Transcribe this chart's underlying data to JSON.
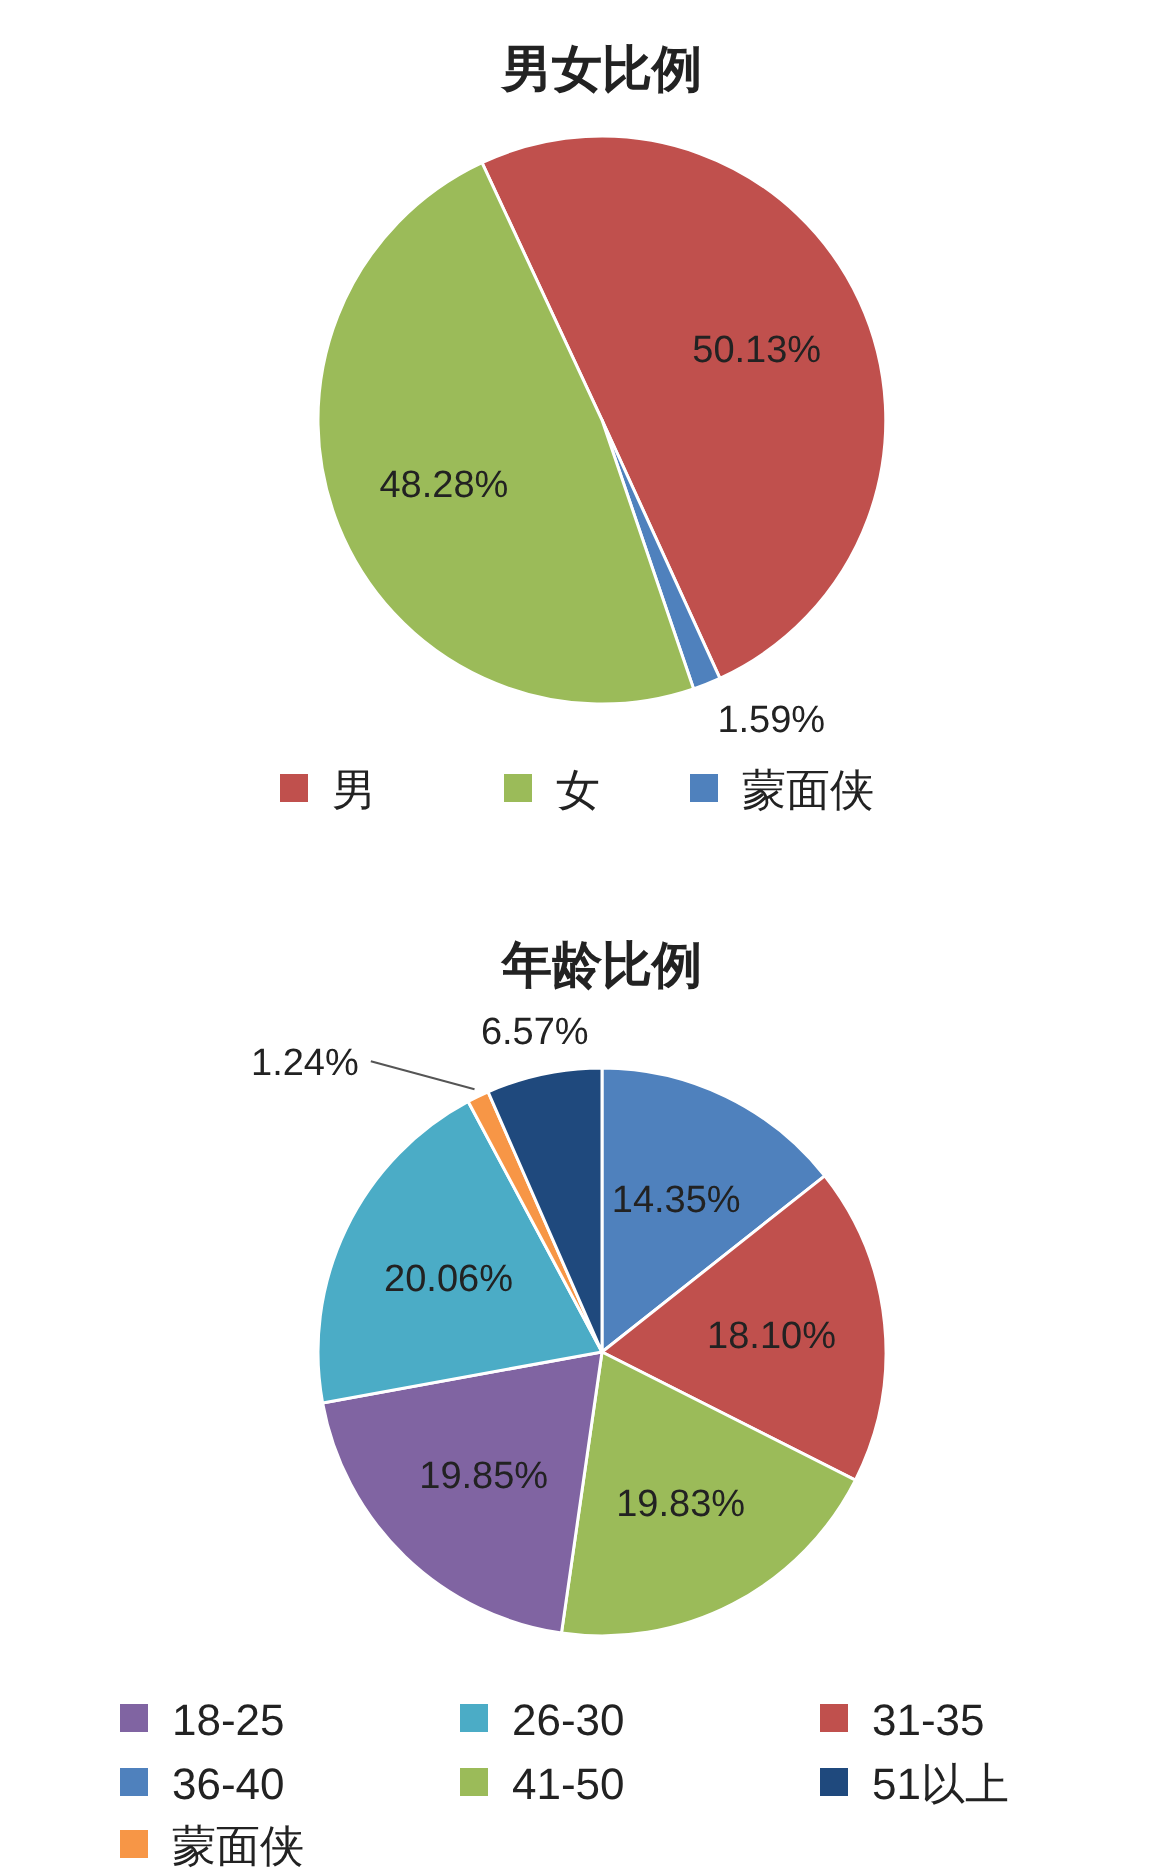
{
  "chart_data": [
    {
      "type": "pie",
      "title": "男女比例",
      "categories": [
        "男",
        "蒙面侠",
        "女"
      ],
      "values": [
        50.13,
        1.59,
        48.28
      ],
      "colors": [
        "#c0504d",
        "#4f81bd",
        "#9bbb59"
      ],
      "value_labels": [
        "50.13%",
        "1.59%",
        "48.28%"
      ],
      "legend": "bottom"
    },
    {
      "type": "pie",
      "title": "年龄比例",
      "categories": [
        "36-40",
        "31-35",
        "41-50",
        "18-25",
        "26-30",
        "蒙面侠",
        "51以上"
      ],
      "values": [
        14.35,
        18.1,
        19.83,
        19.85,
        20.06,
        1.24,
        6.57
      ],
      "colors": [
        "#4f81bd",
        "#c0504d",
        "#9bbb59",
        "#8064a2",
        "#4bacc6",
        "#f79646",
        "#1f497d"
      ],
      "value_labels": [
        "14.35%",
        "18.10%",
        "19.83%",
        "19.85%",
        "20.06%",
        "1.24%",
        "6.57%"
      ],
      "legend": "bottom"
    }
  ]
}
